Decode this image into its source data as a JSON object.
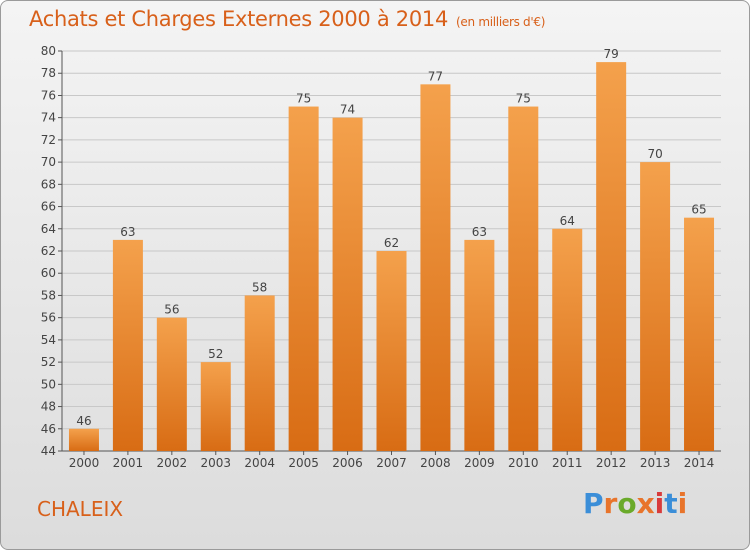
{
  "header": {
    "title": "Achats et Charges Externes 2000 à 2014",
    "subtitle": "(en milliers d'€)"
  },
  "footer": {
    "commune": "CHALEIX",
    "brand": "Proxiti",
    "brand_colors": [
      "#3b8ed8",
      "#e8742b",
      "#6aaa2a",
      "#e8742b",
      "#d83b3b",
      "#3b8ed8",
      "#e8742b"
    ]
  },
  "colors": {
    "bar_top": "#f4a14c",
    "bar_bottom": "#d86c14",
    "text_accent": "#d8601a",
    "grid": "#c8c8c8"
  },
  "chart_data": {
    "type": "bar",
    "categories": [
      "2000",
      "2001",
      "2002",
      "2003",
      "2004",
      "2005",
      "2006",
      "2007",
      "2008",
      "2009",
      "2010",
      "2011",
      "2012",
      "2013",
      "2014"
    ],
    "values": [
      46,
      63,
      56,
      52,
      58,
      75,
      74,
      62,
      77,
      63,
      75,
      64,
      79,
      70,
      65
    ],
    "title": "Achats et Charges Externes 2000 à 2014",
    "ylim": [
      44,
      80
    ],
    "yticks": [
      44,
      46,
      48,
      50,
      52,
      54,
      56,
      58,
      60,
      62,
      64,
      66,
      68,
      70,
      72,
      74,
      76,
      78,
      80
    ],
    "grid": true,
    "data_labels": true
  }
}
